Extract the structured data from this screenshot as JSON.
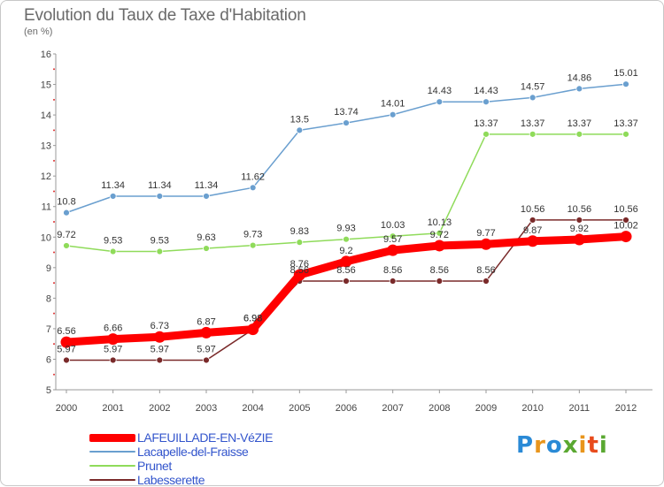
{
  "title": "Evolution du Taux de Taxe d'Habitation",
  "subtitle": "(en %)",
  "brand": {
    "letters": [
      "P",
      "r",
      "o",
      "x",
      "i",
      "t",
      "i"
    ],
    "colors": [
      "#2a8ad6",
      "#e8951c",
      "#2a8ad6",
      "#5aa831",
      "#e8951c",
      "#e84b1c",
      "#5aa831"
    ]
  },
  "chart_data": {
    "type": "line",
    "title": "Evolution du Taux de Taxe d'Habitation",
    "subtitle": "(en %)",
    "xlabel": "",
    "ylabel": "",
    "ylim": [
      5,
      16
    ],
    "yticks": [
      "5",
      "6",
      "7",
      "8",
      "9",
      "10",
      "11",
      "12",
      "13",
      "14",
      "15",
      "16"
    ],
    "x": [
      "2000",
      "2001",
      "2002",
      "2003",
      "2004",
      "2005",
      "2006",
      "2007",
      "2008",
      "2009",
      "2010",
      "2011",
      "2012"
    ],
    "grid": false,
    "legend_position": "bottom-left",
    "series": [
      {
        "name": "LAFEUILLADE-EN-VéZIE",
        "color": "#ff0000",
        "values": [
          6.56,
          6.66,
          6.73,
          6.87,
          6.98,
          8.76,
          9.2,
          9.57,
          9.72,
          9.77,
          9.87,
          9.92,
          10.02
        ],
        "labels": [
          "6.56",
          "6.66",
          "6.73",
          "6.87",
          "6.98",
          "8.76",
          "9.2",
          "9.57",
          "9.72",
          "9.77",
          "9.87",
          "9.92",
          "10.02"
        ]
      },
      {
        "name": "Lacapelle-del-Fraisse",
        "color": "#6a9fcf",
        "values": [
          10.8,
          11.34,
          11.34,
          11.34,
          11.62,
          13.5,
          13.74,
          14.01,
          14.43,
          14.43,
          14.57,
          14.86,
          15.01
        ],
        "labels": [
          "10.8",
          "11.34",
          "11.34",
          "11.34",
          "11.62",
          "13.5",
          "13.74",
          "14.01",
          "14.43",
          "14.43",
          "14.57",
          "14.86",
          "15.01"
        ]
      },
      {
        "name": "Prunet",
        "color": "#8fdb5a",
        "values": [
          9.72,
          9.53,
          9.53,
          9.63,
          9.73,
          9.83,
          9.93,
          10.03,
          10.13,
          13.37,
          13.37,
          13.37,
          13.37
        ],
        "labels": [
          "9.72",
          "9.53",
          "9.53",
          "9.63",
          "9.73",
          "9.83",
          "9.93",
          "10.03",
          "10.13",
          "13.37",
          "13.37",
          "13.37",
          "13.37"
        ]
      },
      {
        "name": "Labesserette",
        "color": "#7a2a2a",
        "values": [
          5.97,
          5.97,
          5.97,
          5.97,
          6.98,
          8.56,
          8.56,
          8.56,
          8.56,
          8.56,
          10.56,
          10.56,
          10.56
        ],
        "labels": [
          "5.97",
          "5.97",
          "5.97",
          "5.97",
          "6.98",
          "8.56",
          "8.56",
          "8.56",
          "8.56",
          "8.56",
          "10.56",
          "10.56",
          "10.56"
        ]
      }
    ]
  }
}
